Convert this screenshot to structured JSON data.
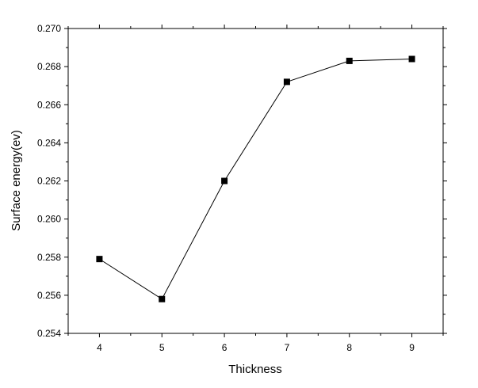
{
  "chart_data": {
    "type": "line",
    "title": "",
    "xlabel": "Thickness",
    "ylabel": "Surface energy(ev)",
    "x": [
      4,
      5,
      6,
      7,
      8,
      9
    ],
    "series": [
      {
        "values": [
          0.2579,
          0.2558,
          0.262,
          0.2672,
          0.2683,
          0.2684
        ]
      }
    ],
    "xlim": [
      3.5,
      9.5
    ],
    "ylim": [
      0.254,
      0.27
    ],
    "xticks": [
      "4",
      "5",
      "6",
      "7",
      "8",
      "9"
    ],
    "yticks": [
      "0.254",
      "0.256",
      "0.258",
      "0.260",
      "0.262",
      "0.264",
      "0.266",
      "0.268",
      "0.270"
    ],
    "marker": "square",
    "line_color": "#000000",
    "grid": false,
    "legend": "none"
  }
}
